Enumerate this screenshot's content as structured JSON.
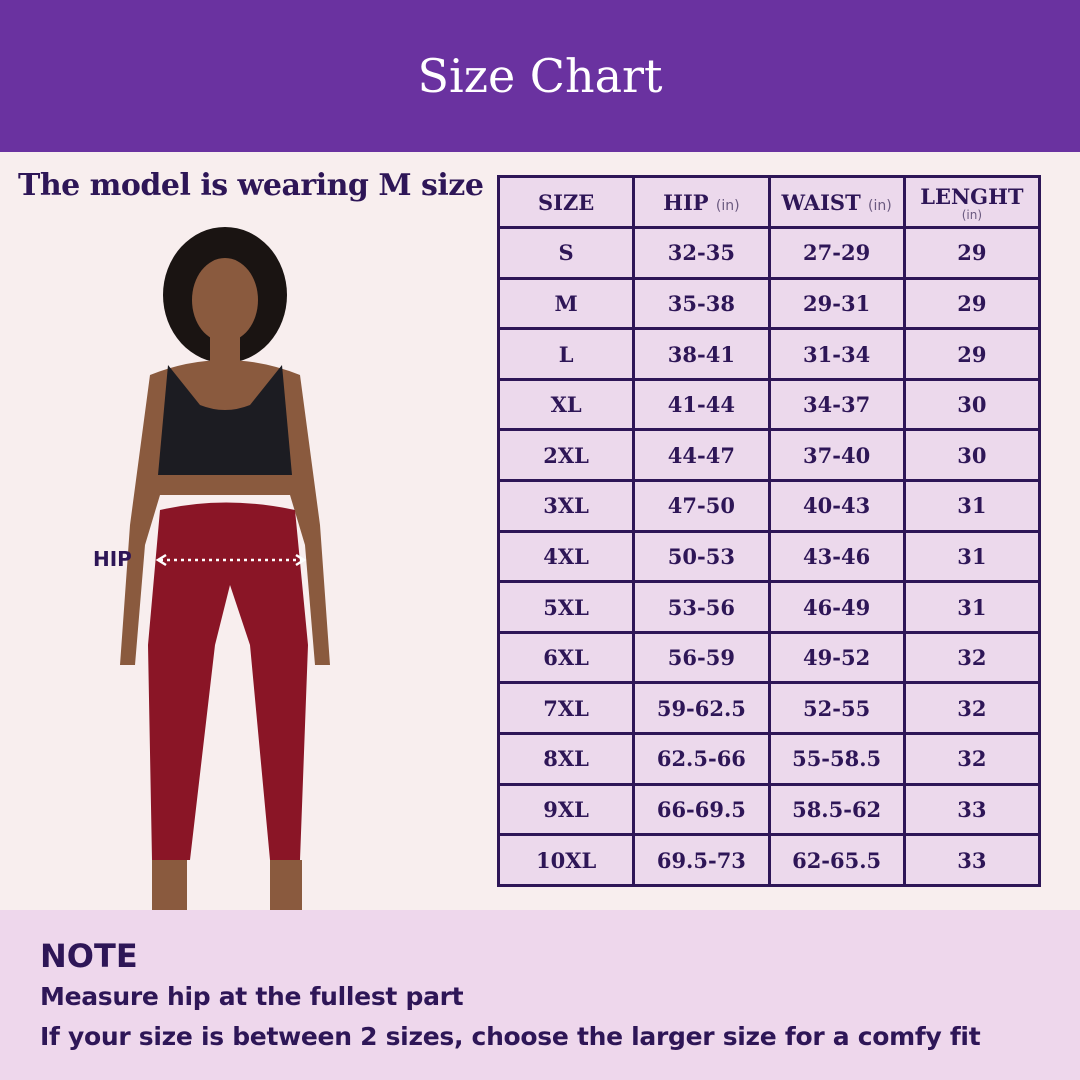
{
  "title": "Size Chart",
  "model_caption": "The model is wearing M size",
  "hip_label": "HIP",
  "colors": {
    "header": "#6a32a0",
    "text": "#2e1657",
    "table_bg": "#ecd9ec",
    "note_bg": "#eed7ec",
    "leggings": "#8a1526"
  },
  "table": {
    "headers": [
      {
        "label": "SIZE",
        "unit": ""
      },
      {
        "label": "HIP",
        "unit": "(in)"
      },
      {
        "label": "WAIST",
        "unit": "(in)"
      },
      {
        "label": "LENGHT",
        "unit": "(in)"
      }
    ],
    "rows": [
      [
        "S",
        "32-35",
        "27-29",
        "29"
      ],
      [
        "M",
        "35-38",
        "29-31",
        "29"
      ],
      [
        "L",
        "38-41",
        "31-34",
        "29"
      ],
      [
        "XL",
        "41-44",
        "34-37",
        "30"
      ],
      [
        "2XL",
        "44-47",
        "37-40",
        "30"
      ],
      [
        "3XL",
        "47-50",
        "40-43",
        "31"
      ],
      [
        "4XL",
        "50-53",
        "43-46",
        "31"
      ],
      [
        "5XL",
        "53-56",
        "46-49",
        "31"
      ],
      [
        "6XL",
        "56-59",
        "49-52",
        "32"
      ],
      [
        "7XL",
        "59-62.5",
        "52-55",
        "32"
      ],
      [
        "8XL",
        "62.5-66",
        "55-58.5",
        "32"
      ],
      [
        "9XL",
        "66-69.5",
        "58.5-62",
        "33"
      ],
      [
        "10XL",
        "69.5-73",
        "62-65.5",
        "33"
      ]
    ]
  },
  "note": {
    "heading": "NOTE",
    "lines": [
      "Measure hip at the fullest part",
      "If your size is between 2 sizes, choose the larger size for a comfy fit"
    ]
  }
}
